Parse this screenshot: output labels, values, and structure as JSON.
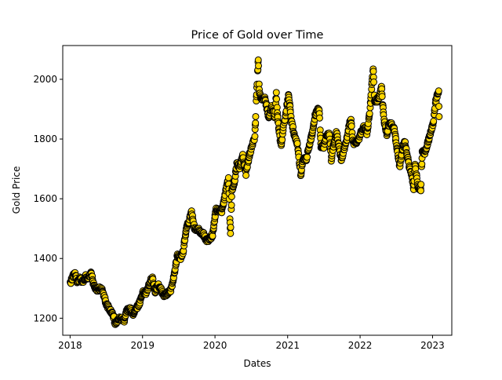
{
  "chart_data": {
    "type": "scatter",
    "title": "Price of Gold over Time",
    "xlabel": "Dates",
    "ylabel": "Gold Price",
    "x_range": [
      "2017-11-25",
      "2023-04-08"
    ],
    "ylim": [
      1143,
      2113
    ],
    "x_ticks": [
      {
        "date": "2018-01-01",
        "label": "2018"
      },
      {
        "date": "2019-01-01",
        "label": "2019"
      },
      {
        "date": "2020-01-01",
        "label": "2020"
      },
      {
        "date": "2021-01-01",
        "label": "2021"
      },
      {
        "date": "2022-01-01",
        "label": "2022"
      },
      {
        "date": "2023-01-01",
        "label": "2023"
      }
    ],
    "y_ticks": [
      1200,
      1400,
      1600,
      1800,
      2000
    ],
    "grid": false,
    "marker_face_color": "#FFD700",
    "marker_edge_color": "#000000",
    "anchors": [
      [
        "2018-01-02",
        1318
      ],
      [
        "2018-01-12",
        1335
      ],
      [
        "2018-01-25",
        1352
      ],
      [
        "2018-02-08",
        1318
      ],
      [
        "2018-02-20",
        1332
      ],
      [
        "2018-03-05",
        1322
      ],
      [
        "2018-03-20",
        1340
      ],
      [
        "2018-04-05",
        1335
      ],
      [
        "2018-04-18",
        1350
      ],
      [
        "2018-05-01",
        1308
      ],
      [
        "2018-05-15",
        1295
      ],
      [
        "2018-06-01",
        1300
      ],
      [
        "2018-06-15",
        1290
      ],
      [
        "2018-07-01",
        1250
      ],
      [
        "2018-07-20",
        1228
      ],
      [
        "2018-08-05",
        1215
      ],
      [
        "2018-08-16",
        1180
      ],
      [
        "2018-09-01",
        1195
      ],
      [
        "2018-09-15",
        1200
      ],
      [
        "2018-10-01",
        1192
      ],
      [
        "2018-10-15",
        1228
      ],
      [
        "2018-11-01",
        1230
      ],
      [
        "2018-11-15",
        1215
      ],
      [
        "2018-12-01",
        1235
      ],
      [
        "2018-12-15",
        1248
      ],
      [
        "2019-01-01",
        1285
      ],
      [
        "2019-01-20",
        1285
      ],
      [
        "2019-02-05",
        1315
      ],
      [
        "2019-02-20",
        1340
      ],
      [
        "2019-03-05",
        1290
      ],
      [
        "2019-03-20",
        1312
      ],
      [
        "2019-04-05",
        1295
      ],
      [
        "2019-04-20",
        1275
      ],
      [
        "2019-05-10",
        1285
      ],
      [
        "2019-05-25",
        1295
      ],
      [
        "2019-06-10",
        1345
      ],
      [
        "2019-06-25",
        1410
      ],
      [
        "2019-07-10",
        1400
      ],
      [
        "2019-07-25",
        1425
      ],
      [
        "2019-08-10",
        1500
      ],
      [
        "2019-08-25",
        1530
      ],
      [
        "2019-09-05",
        1555
      ],
      [
        "2019-09-20",
        1500
      ],
      [
        "2019-10-05",
        1500
      ],
      [
        "2019-10-20",
        1490
      ],
      [
        "2019-11-05",
        1480
      ],
      [
        "2019-11-20",
        1460
      ],
      [
        "2019-12-05",
        1465
      ],
      [
        "2019-12-20",
        1480
      ],
      [
        "2020-01-06",
        1565
      ],
      [
        "2020-01-20",
        1560
      ],
      [
        "2020-02-05",
        1560
      ],
      [
        "2020-02-20",
        1610
      ],
      [
        "2020-03-01",
        1645
      ],
      [
        "2020-03-09",
        1675
      ],
      [
        "2020-03-19",
        1480
      ],
      [
        "2020-03-26",
        1625
      ],
      [
        "2020-04-08",
        1650
      ],
      [
        "2020-04-20",
        1720
      ],
      [
        "2020-05-05",
        1705
      ],
      [
        "2020-05-20",
        1745
      ],
      [
        "2020-06-05",
        1685
      ],
      [
        "2020-06-20",
        1740
      ],
      [
        "2020-07-05",
        1775
      ],
      [
        "2020-07-20",
        1810
      ],
      [
        "2020-07-30",
        1970
      ],
      [
        "2020-08-06",
        2065
      ],
      [
        "2020-08-12",
        1950
      ],
      [
        "2020-08-25",
        1930
      ],
      [
        "2020-09-08",
        1935
      ],
      [
        "2020-09-20",
        1900
      ],
      [
        "2020-09-28",
        1870
      ],
      [
        "2020-10-12",
        1910
      ],
      [
        "2020-10-28",
        1875
      ],
      [
        "2020-11-05",
        1950
      ],
      [
        "2020-11-12",
        1870
      ],
      [
        "2020-11-24",
        1800
      ],
      [
        "2020-11-30",
        1775
      ],
      [
        "2020-12-10",
        1840
      ],
      [
        "2020-12-20",
        1875
      ],
      [
        "2021-01-06",
        1950
      ],
      [
        "2021-01-20",
        1860
      ],
      [
        "2021-02-05",
        1810
      ],
      [
        "2021-02-20",
        1780
      ],
      [
        "2021-03-01",
        1725
      ],
      [
        "2021-03-08",
        1680
      ],
      [
        "2021-03-20",
        1735
      ],
      [
        "2021-04-05",
        1730
      ],
      [
        "2021-04-20",
        1780
      ],
      [
        "2021-05-05",
        1820
      ],
      [
        "2021-05-20",
        1880
      ],
      [
        "2021-06-01",
        1900
      ],
      [
        "2021-06-10",
        1890
      ],
      [
        "2021-06-18",
        1775
      ],
      [
        "2021-07-01",
        1770
      ],
      [
        "2021-07-15",
        1815
      ],
      [
        "2021-08-01",
        1815
      ],
      [
        "2021-08-09",
        1730
      ],
      [
        "2021-08-20",
        1780
      ],
      [
        "2021-09-05",
        1825
      ],
      [
        "2021-09-20",
        1760
      ],
      [
        "2021-09-29",
        1730
      ],
      [
        "2021-10-10",
        1760
      ],
      [
        "2021-10-25",
        1795
      ],
      [
        "2021-11-08",
        1850
      ],
      [
        "2021-11-16",
        1865
      ],
      [
        "2021-11-25",
        1790
      ],
      [
        "2021-12-10",
        1785
      ],
      [
        "2021-12-20",
        1790
      ],
      [
        "2022-01-05",
        1820
      ],
      [
        "2022-01-20",
        1840
      ],
      [
        "2022-02-05",
        1815
      ],
      [
        "2022-02-20",
        1900
      ],
      [
        "2022-03-08",
        2040
      ],
      [
        "2022-03-15",
        1930
      ],
      [
        "2022-03-28",
        1930
      ],
      [
        "2022-04-10",
        1945
      ],
      [
        "2022-04-18",
        1980
      ],
      [
        "2022-05-01",
        1865
      ],
      [
        "2022-05-16",
        1815
      ],
      [
        "2022-05-25",
        1850
      ],
      [
        "2022-06-10",
        1850
      ],
      [
        "2022-06-25",
        1825
      ],
      [
        "2022-07-05",
        1765
      ],
      [
        "2022-07-20",
        1710
      ],
      [
        "2022-08-05",
        1775
      ],
      [
        "2022-08-15",
        1790
      ],
      [
        "2022-08-25",
        1750
      ],
      [
        "2022-09-05",
        1710
      ],
      [
        "2022-09-20",
        1670
      ],
      [
        "2022-09-28",
        1630
      ],
      [
        "2022-10-05",
        1710
      ],
      [
        "2022-10-20",
        1640
      ],
      [
        "2022-11-03",
        1630
      ],
      [
        "2022-11-10",
        1755
      ],
      [
        "2022-11-25",
        1755
      ],
      [
        "2022-12-05",
        1780
      ],
      [
        "2022-12-20",
        1815
      ],
      [
        "2023-01-05",
        1855
      ],
      [
        "2023-01-15",
        1920
      ],
      [
        "2023-01-25",
        1945
      ],
      [
        "2023-02-01",
        1955
      ],
      [
        "2023-02-03",
        1875
      ]
    ]
  }
}
